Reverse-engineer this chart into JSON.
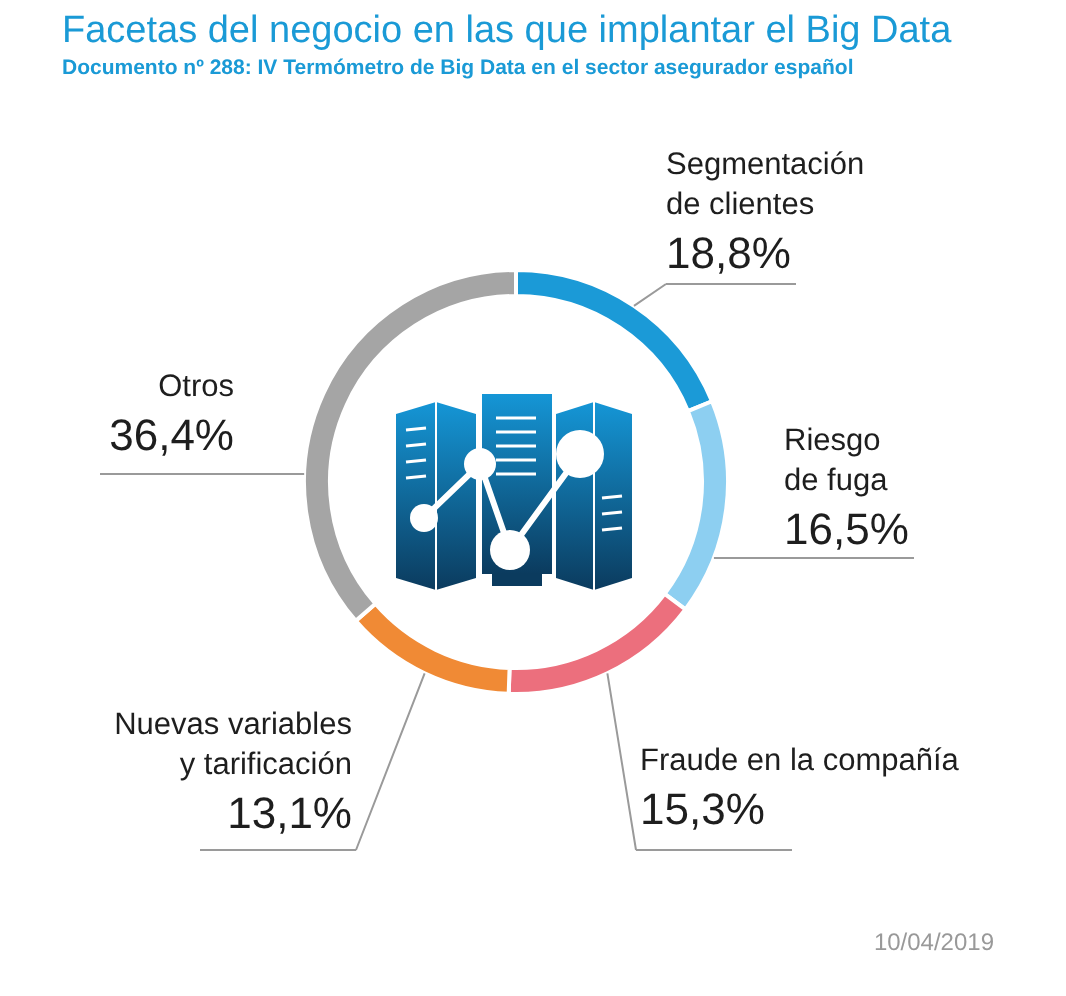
{
  "chart_data": {
    "type": "donut",
    "title": "Facetas del negocio en las que implantar el Big Data",
    "subtitle": "Documento nº 288: IV Termómetro de Big Data en el sector asegurador español",
    "categories": [
      "Segmentación de clientes",
      "Riesgo de fuga",
      "Fraude en la compañía",
      "Nuevas variables y tarificación",
      "Otros"
    ],
    "values": [
      18.8,
      16.5,
      15.3,
      13.1,
      36.4
    ],
    "value_labels": [
      "18,8%",
      "16,5%",
      "15,3%",
      "13,1%",
      "36,4%"
    ],
    "colors": [
      "#1b9ad7",
      "#8dcff1",
      "#ec6f7d",
      "#f08a35",
      "#a5a5a5"
    ],
    "annotations": [
      "10/04/2019"
    ]
  }
}
